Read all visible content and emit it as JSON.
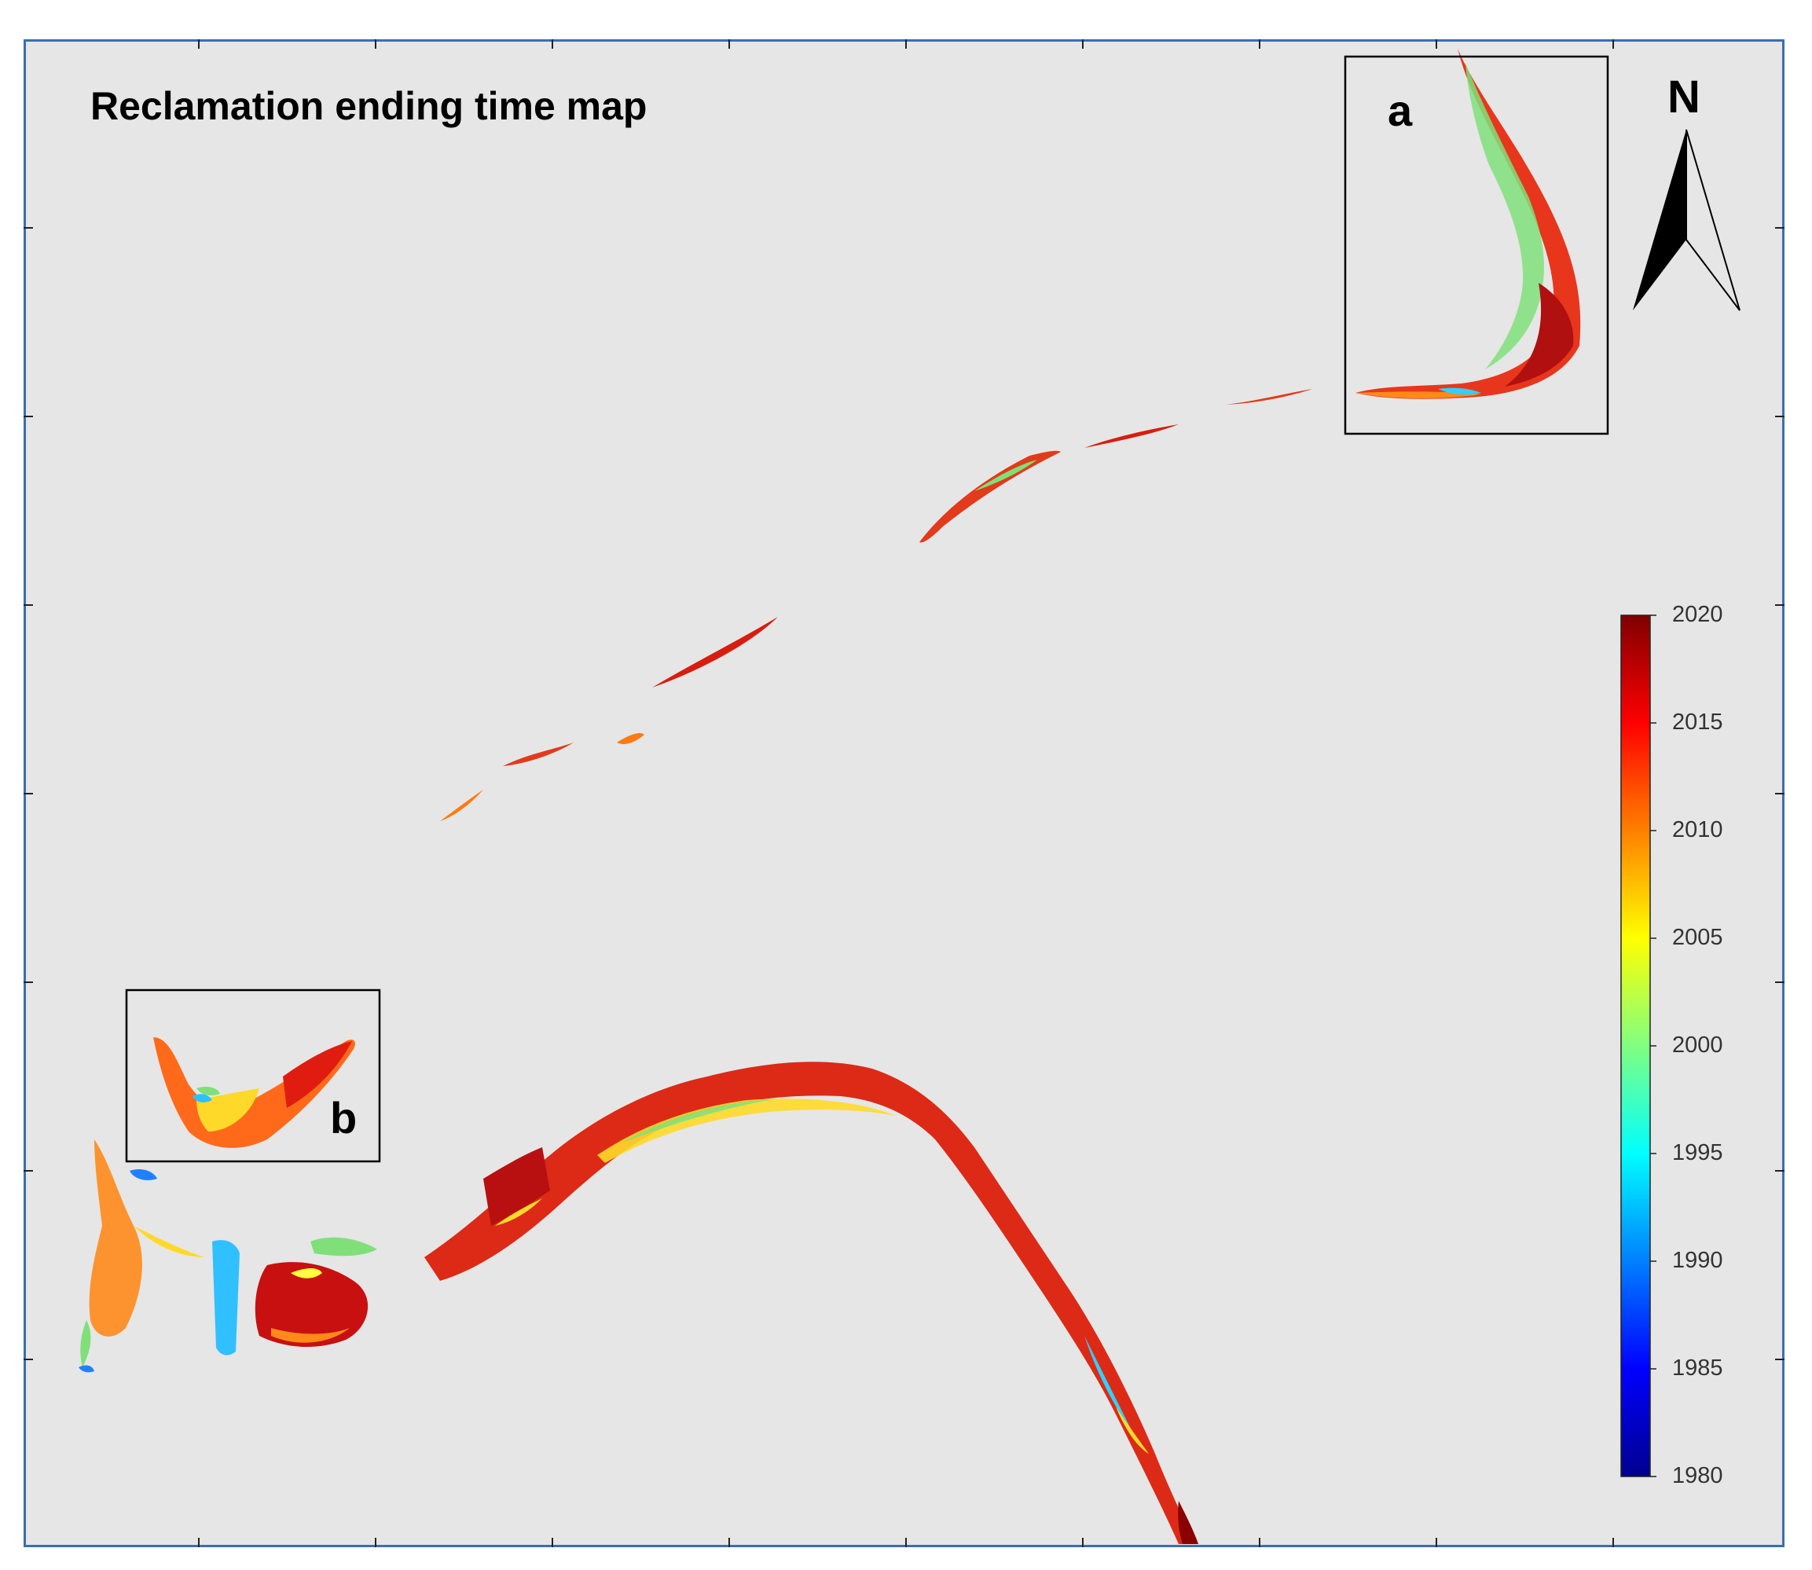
{
  "title": "Reclamation ending time map",
  "insets": [
    {
      "label": "a"
    },
    {
      "label": "b"
    }
  ],
  "north_arrow": {
    "label": "N"
  },
  "colorbar": {
    "min": 1980,
    "max": 2020,
    "ticks": [
      "2020",
      "2015",
      "2010",
      "2005",
      "2000",
      "1995",
      "1990",
      "1985",
      "1980"
    ],
    "colormap": "jet",
    "colors": [
      "#00008f",
      "#0000ff",
      "#0080ff",
      "#00ffff",
      "#80ff80",
      "#ffff00",
      "#ff8000",
      "#ff0000",
      "#800000"
    ]
  },
  "colors": {
    "background": "#e6e6e6",
    "frame": "#3a6fb0",
    "inset_box": "#000000"
  }
}
